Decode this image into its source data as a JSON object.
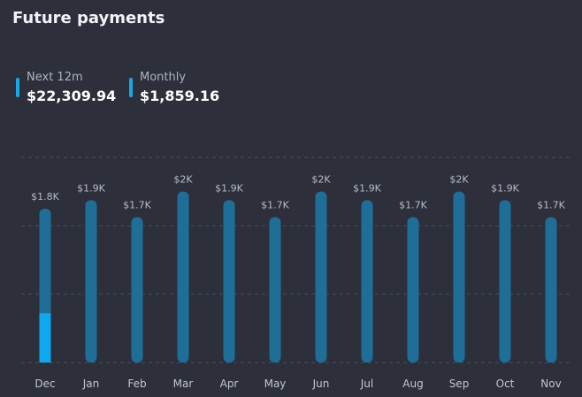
{
  "header": {
    "title": "Future payments"
  },
  "stats": [
    {
      "label": "Next 12m",
      "value": "$22,309.94",
      "color": "#1aa6e8"
    },
    {
      "label": "Monthly",
      "value": "$1,859.16",
      "color": "#1aa6e8"
    }
  ],
  "chart_data": {
    "type": "bar",
    "categories": [
      "Dec",
      "Jan",
      "Feb",
      "Mar",
      "Apr",
      "May",
      "Jun",
      "Jul",
      "Aug",
      "Sep",
      "Oct",
      "Nov"
    ],
    "values": [
      1800,
      1900,
      1700,
      2000,
      1900,
      1700,
      2000,
      1900,
      1700,
      2000,
      1900,
      1700
    ],
    "data_labels": [
      "$1.8K",
      "$1.9K",
      "$1.7K",
      "$2K",
      "$1.9K",
      "$1.7K",
      "$2K",
      "$1.9K",
      "$1.7K",
      "$2K",
      "$1.9K",
      "$1.7K"
    ],
    "highlight": {
      "category": "Dec",
      "paid_fraction": 0.32
    },
    "ylim": [
      0,
      2400
    ],
    "grid": true,
    "colors": {
      "bar": "#1f6e98",
      "highlight": "#0fa8f0",
      "grid": "#4a4d5e",
      "label": "#b8bcc8",
      "tick": "#c2c6d2"
    }
  }
}
